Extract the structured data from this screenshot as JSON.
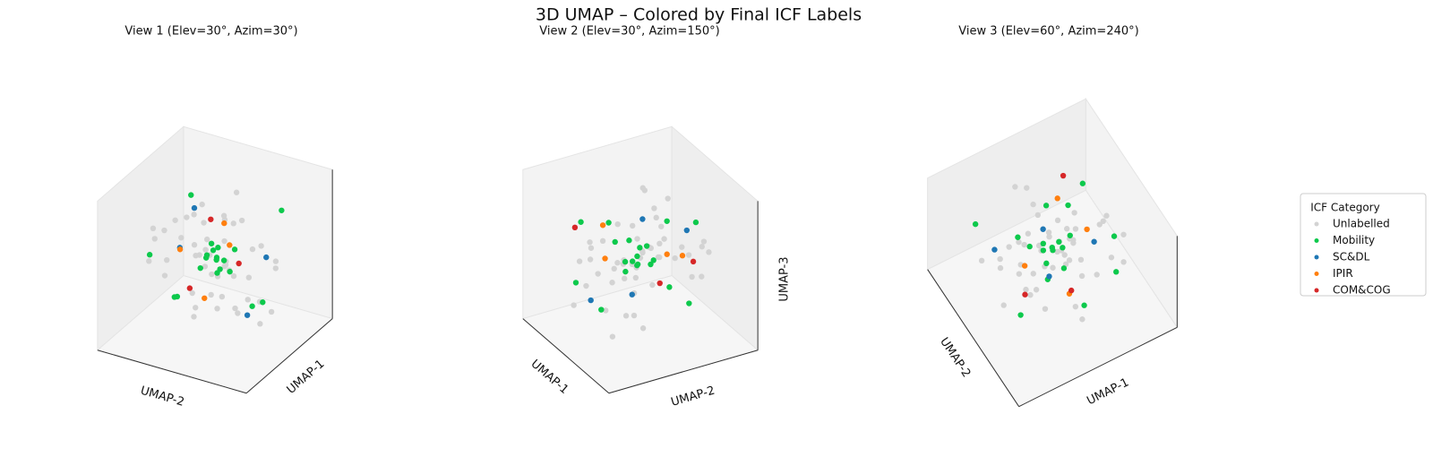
{
  "chart_data": {
    "type": "scatter3d",
    "title": "3D UMAP – Colored by Final ICF Labels",
    "xlim": [
      -6,
      6
    ],
    "ylim": [
      -6,
      6
    ],
    "zlim": [
      -6,
      6
    ],
    "views": [
      {
        "title": "View 1 (Elev=30°, Azim=30°)",
        "elev": 30,
        "azim": 30,
        "axis_labels": {
          "x": "UMAP-1",
          "y": "UMAP-2"
        }
      },
      {
        "title": "View 2 (Elev=30°, Azim=150°)",
        "elev": 30,
        "azim": 150,
        "axis_labels": {
          "x": "UMAP-1",
          "y": "UMAP-2",
          "z": "UMAP-3"
        }
      },
      {
        "title": "View 3 (Elev=60°, Azim=240°)",
        "elev": 60,
        "azim": 240,
        "axis_labels": {
          "x": "UMAP-1",
          "y": "UMAP-2"
        }
      }
    ],
    "legend_title": "ICF Category",
    "legend": "right",
    "series": [
      {
        "name": "Unlabelled",
        "color": "#d3d3d3",
        "x": [
          0.2,
          -0.5,
          0.8,
          -1.1,
          0.4,
          1.3,
          -0.2,
          0.6,
          -0.8,
          1.0,
          -1.5,
          0.1,
          2.1,
          -2.3,
          0.9,
          -0.4,
          1.7,
          -1.9,
          2.8,
          -3.1,
          3.5,
          -3.8,
          0.3,
          -0.1,
          4.2,
          -4.4,
          1.5,
          -2.6,
          2.4,
          -0.7,
          0.5,
          -1.3,
          3.0,
          -3.4,
          1.9,
          -0.9,
          0.0,
          2.6,
          -2.0,
          1.1,
          4.8,
          -4.9,
          0.7,
          -0.3,
          3.9,
          -1.6,
          2.2,
          -2.8,
          0.6,
          -0.6
        ],
        "y": [
          -0.3,
          0.6,
          0.2,
          -0.9,
          1.1,
          -0.5,
          1.4,
          -1.2,
          0.3,
          0.8,
          -0.1,
          -1.6,
          0.9,
          1.7,
          -2.2,
          2.5,
          -2.9,
          0.4,
          1.8,
          -1.0,
          -3.3,
          2.7,
          3.9,
          -4.1,
          0.6,
          -0.8,
          4.5,
          -2.4,
          -3.6,
          3.2,
          -1.4,
          1.9,
          2.3,
          -3.0,
          -0.6,
          -4.6,
          4.9,
          -1.7,
          3.4,
          0.0,
          1.2,
          -2.1,
          -0.4,
          2.0,
          -2.6,
          0.7,
          3.1,
          -3.9,
          1.5,
          -1.1
        ],
        "z": [
          0.4,
          -0.2,
          -0.7,
          0.5,
          0.1,
          0.9,
          -1.0,
          0.3,
          1.2,
          -0.6,
          -1.3,
          0.8,
          -1.5,
          0.2,
          1.6,
          -0.9,
          0.0,
          2.1,
          -2.0,
          1.4,
          0.7,
          -1.8,
          2.4,
          -2.5,
          -0.4,
          3.0,
          -3.1,
          1.0,
          2.7,
          -2.8,
          3.5,
          -3.3,
          -0.8,
          1.9,
          -3.8,
          0.6,
          1.3,
          4.0,
          -4.2,
          2.2,
          -1.1,
          0.5,
          -0.3,
          3.6,
          2.9,
          -4.5,
          -2.3,
          0.9,
          -0.1,
          0.2
        ]
      },
      {
        "name": "Mobility",
        "color": "#0dc94c",
        "x": [
          0.1,
          -0.4,
          0.6,
          0.9,
          -0.8,
          0.3,
          -1.2,
          1.4,
          0.0,
          -0.2,
          3.8,
          -3.5,
          2.7,
          -4.1,
          1.9,
          4.4,
          -2.2,
          0.8,
          -0.6,
          2.0
        ],
        "y": [
          0.2,
          0.5,
          -0.3,
          0.7,
          -0.6,
          -1.0,
          0.9,
          0.1,
          1.2,
          -0.4,
          2.6,
          -1.9,
          -3.7,
          3.0,
          4.1,
          -0.5,
          -3.2,
          -2.8,
          3.5,
          1.4
        ],
        "z": [
          0.3,
          -0.1,
          0.6,
          -0.4,
          0.2,
          -0.8,
          0.5,
          0.9,
          -0.6,
          1.1,
          1.9,
          -2.3,
          0.7,
          2.8,
          -1.6,
          -0.9,
          3.2,
          -3.4,
          -2.7,
          2.4
        ]
      },
      {
        "name": "SC&DL",
        "color": "#1f77b4",
        "x": [
          2.3,
          -3.0,
          1.2,
          -1.8
        ],
        "y": [
          -1.5,
          2.4,
          3.3,
          -2.7
        ],
        "z": [
          1.7,
          -0.6,
          -2.9,
          2.5
        ]
      },
      {
        "name": "IPIR",
        "color": "#ff7f0e",
        "x": [
          1.6,
          -2.5,
          3.2,
          -0.5
        ],
        "y": [
          2.1,
          -0.7,
          1.0,
          -3.1
        ],
        "z": [
          2.6,
          1.5,
          -1.2,
          -0.3
        ]
      },
      {
        "name": "COM&COG",
        "color": "#d62728",
        "x": [
          -3.4,
          2.9,
          0.4
        ],
        "y": [
          -2.3,
          3.6,
          -1.8
        ],
        "z": [
          0.9,
          2.2,
          -2.6
        ]
      }
    ]
  }
}
